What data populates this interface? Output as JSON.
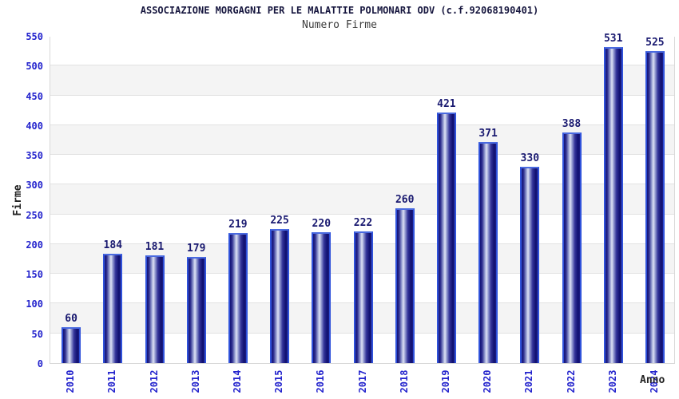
{
  "chart_data": {
    "type": "bar",
    "title": "ASSOCIAZIONE MORGAGNI PER LE MALATTIE POLMONARI ODV (c.f.92068190401)",
    "subtitle": "Numero Firme",
    "categories": [
      "2010",
      "2011",
      "2012",
      "2013",
      "2014",
      "2015",
      "2016",
      "2017",
      "2018",
      "2019",
      "2020",
      "2021",
      "2022",
      "2023",
      "2024"
    ],
    "values": [
      60,
      184,
      181,
      179,
      219,
      225,
      220,
      222,
      260,
      421,
      371,
      330,
      388,
      531,
      525
    ],
    "xlabel": "Anno",
    "ylabel": "Firme",
    "ylim": [
      0,
      550
    ],
    "ytick_step": 50,
    "grid": "horizontal gridlines every 50 with alternating shaded bands",
    "legend": "none",
    "value_labels": "above each bar"
  },
  "colors": {
    "background": "#ffffff",
    "title_text": "#16163e",
    "subtitle_text": "#3c3c3c",
    "axis_tick_text": "#2424cd",
    "value_label_text": "#191970",
    "axis_title_text": "#222222",
    "plot_border": "#d8d8d8",
    "gridline": "#e2e2e2",
    "band_shaded": "#f4f4f4",
    "band_plain": "#ffffff",
    "bar_border": "#3052da",
    "bar_border_top": "#4a6ae0",
    "bar_dark": "#141478",
    "bar_mid": "#9aa2d4",
    "bar_light": "#e0e3f5"
  }
}
